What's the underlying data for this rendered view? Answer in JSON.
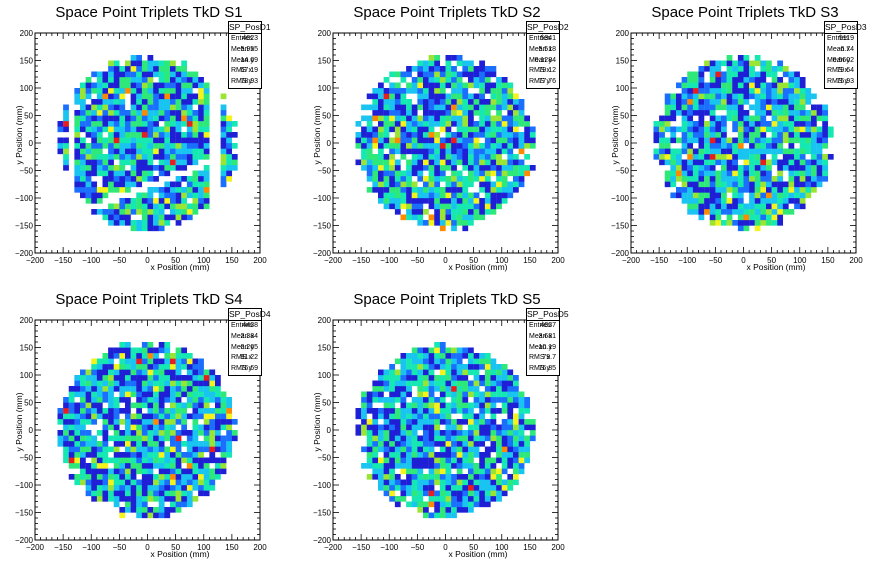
{
  "colors": {
    "background": "#ffffff",
    "frame": "#000000",
    "palette": [
      "#1f1fd6",
      "#1a6fff",
      "#19c4f0",
      "#16e8b4",
      "#2ee87a",
      "#9ae534",
      "#f4f31c",
      "#ff8a00",
      "#e81e1e"
    ]
  },
  "chart_data": [
    {
      "type": "heatmap",
      "title": "Space Point Triplets TkD S1",
      "xlabel": "x Position (mm)",
      "ylabel": "y Position (mm)",
      "xlim": [
        -200,
        200
      ],
      "ylim": [
        -200,
        200
      ],
      "xticks": [
        "−200",
        "−150",
        "−100",
        "−50",
        "0",
        "50",
        "100",
        "150",
        "200"
      ],
      "yticks": [
        "−200",
        "−150",
        "−100",
        "−50",
        "0",
        "50",
        "100",
        "150",
        "200"
      ],
      "stats": {
        "name": "SP_PosD1",
        "rows": [
          {
            "label": "Entries",
            "value": "4023"
          },
          {
            "label": "Mean x",
            "value": "−5.955"
          },
          {
            "label": "Mean y",
            "value": "14.69"
          },
          {
            "label": "RMS x",
            "value": "67.19"
          },
          {
            "label": "RMS y",
            "value": "78.93"
          }
        ]
      },
      "distribution": {
        "shape": "disc",
        "radius_mm": 160,
        "bin_size_mm": 10,
        "gaps": [
          "no hits at x < -125 (outer left strip separated)",
          "no hits at x > 110 except outer right strip",
          "diagonal empty band from (-100,-120) to (100,-40)"
        ]
      }
    },
    {
      "type": "heatmap",
      "title": "Space Point Triplets TkD S2",
      "xlabel": "x Position (mm)",
      "ylabel": "y Position (mm)",
      "xlim": [
        -200,
        200
      ],
      "ylim": [
        -200,
        200
      ],
      "xticks": [
        "−200",
        "−150",
        "−100",
        "−50",
        "0",
        "50",
        "100",
        "150",
        "200"
      ],
      "yticks": [
        "−200",
        "−150",
        "−100",
        "−50",
        "0",
        "50",
        "100",
        "150",
        "200"
      ],
      "stats": {
        "name": "SP_PosD2",
        "rows": [
          {
            "label": "Entries",
            "value": "5341"
          },
          {
            "label": "Mean x",
            "value": "5.518"
          },
          {
            "label": "Mean y",
            "value": "0.1284"
          },
          {
            "label": "RMS x",
            "value": "79.12"
          },
          {
            "label": "RMS y",
            "value": "77.76"
          }
        ]
      },
      "distribution": {
        "shape": "disc",
        "radius_mm": 160,
        "bin_size_mm": 10
      }
    },
    {
      "type": "heatmap",
      "title": "Space Point Triplets TkD S3",
      "xlabel": "x Position (mm)",
      "ylabel": "y Position (mm)",
      "xlim": [
        -200,
        200
      ],
      "ylim": [
        -200,
        200
      ],
      "xticks": [
        "−200",
        "−150",
        "−100",
        "−50",
        "0",
        "50",
        "100",
        "150",
        "200"
      ],
      "yticks": [
        "−200",
        "−150",
        "−100",
        "−50",
        "0",
        "50",
        "100",
        "150",
        "200"
      ],
      "stats": {
        "name": "SP_PosD3",
        "rows": [
          {
            "label": "Entries",
            "value": "5119"
          },
          {
            "label": "Mean x",
            "value": "6.74"
          },
          {
            "label": "Mean y",
            "value": "0.5602"
          },
          {
            "label": "RMS x",
            "value": "79.64"
          },
          {
            "label": "RMS y",
            "value": "75.93"
          }
        ]
      },
      "distribution": {
        "shape": "disc",
        "radius_mm": 160,
        "bin_size_mm": 10
      }
    },
    {
      "type": "heatmap",
      "title": "Space Point Triplets TkD S4",
      "xlabel": "x Position (mm)",
      "ylabel": "y Position (mm)",
      "xlim": [
        -200,
        200
      ],
      "ylim": [
        -200,
        200
      ],
      "xticks": [
        "−200",
        "−150",
        "−100",
        "−50",
        "0",
        "50",
        "100",
        "150",
        "200"
      ],
      "yticks": [
        "−200",
        "−150",
        "−100",
        "−50",
        "0",
        "50",
        "100",
        "150",
        "200"
      ],
      "stats": {
        "name": "SP_PosD4",
        "rows": [
          {
            "label": "Entries",
            "value": "4438"
          },
          {
            "label": "Mean x",
            "value": "2.384"
          },
          {
            "label": "Mean y",
            "value": "0.265"
          },
          {
            "label": "RMS x",
            "value": "81.22"
          },
          {
            "label": "RMS y",
            "value": "76.69"
          }
        ]
      },
      "distribution": {
        "shape": "disc",
        "radius_mm": 160,
        "bin_size_mm": 10
      }
    },
    {
      "type": "heatmap",
      "title": "Space Point Triplets TkD S5",
      "xlabel": "x Position (mm)",
      "ylabel": "y Position (mm)",
      "xlim": [
        -200,
        200
      ],
      "ylim": [
        -200,
        200
      ],
      "xticks": [
        "−200",
        "−150",
        "−100",
        "−50",
        "0",
        "50",
        "100",
        "150",
        "200"
      ],
      "yticks": [
        "−200",
        "−150",
        "−100",
        "−50",
        "0",
        "50",
        "100",
        "150",
        "200"
      ],
      "stats": {
        "name": "SP_PosD5",
        "rows": [
          {
            "label": "Entries",
            "value": "4037"
          },
          {
            "label": "Mean x",
            "value": "3.681"
          },
          {
            "label": "Mean y",
            "value": "−10.19"
          },
          {
            "label": "RMS x",
            "value": "79.7"
          },
          {
            "label": "RMS y",
            "value": "76.85"
          }
        ]
      },
      "distribution": {
        "shape": "disc",
        "radius_mm": 160,
        "bin_size_mm": 10
      }
    }
  ]
}
